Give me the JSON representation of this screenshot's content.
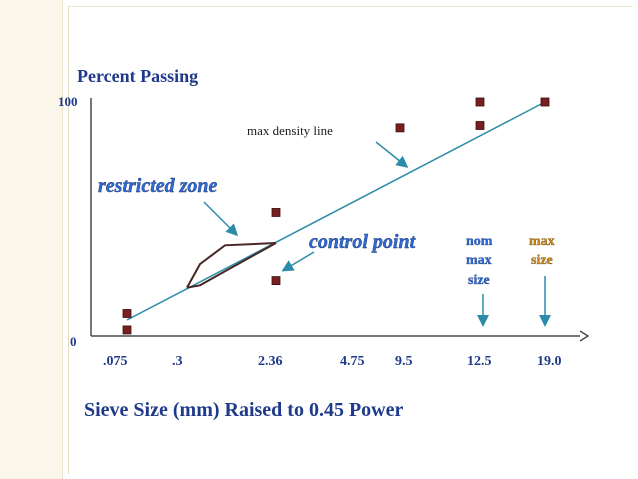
{
  "chart_data": {
    "type": "scatter",
    "title": "Percent Passing",
    "xlabel": "Sieve Size (mm) Raised to 0.45 Power",
    "ylabel": "Percent Passing",
    "y_ticks": [
      "0",
      "100"
    ],
    "ylim": [
      0,
      100
    ],
    "x_ticks": [
      ".075",
      ".3",
      "2.36",
      "4.75",
      "9.5",
      "12.5",
      "19.0"
    ],
    "max_density_line": {
      "label": "max density line",
      "x": [
        0.075,
        19.0
      ],
      "y": [
        8,
        100
      ]
    },
    "control_points": {
      "label": "control point",
      "points": [
        {
          "x": 0.075,
          "y": 10
        },
        {
          "x": 0.075,
          "y": 3
        },
        {
          "x": 2.36,
          "y": 53
        },
        {
          "x": 2.36,
          "y": 24
        },
        {
          "x": 12.5,
          "y": 90
        },
        {
          "x": 12.5,
          "y": 100
        },
        {
          "x": 19.0,
          "y": 100
        }
      ]
    },
    "restricted_zone": {
      "label": "restricted zone",
      "upper": [
        {
          "x": 0.3,
          "y": 21
        },
        {
          "x": 0.6,
          "y": 31
        },
        {
          "x": 1.18,
          "y": 39
        },
        {
          "x": 2.36,
          "y": 40
        }
      ],
      "lower": [
        {
          "x": 0.3,
          "y": 21
        },
        {
          "x": 0.6,
          "y": 22
        },
        {
          "x": 1.18,
          "y": 28
        },
        {
          "x": 2.36,
          "y": 40
        }
      ]
    },
    "extra_point": {
      "x": 9.5,
      "y": 89
    },
    "annotations": {
      "nominal": [
        "nom",
        "max",
        "size"
      ],
      "maximum": [
        "max",
        "size"
      ]
    },
    "colors": {
      "line": "#2c8ca8",
      "marker": "#7a1f1f",
      "zone": "#4a2626",
      "title": "#1f3a8a",
      "accent_blue": "#2f6bd8",
      "accent_orange": "#c98a1a",
      "axis": "#4a4a4a"
    }
  }
}
